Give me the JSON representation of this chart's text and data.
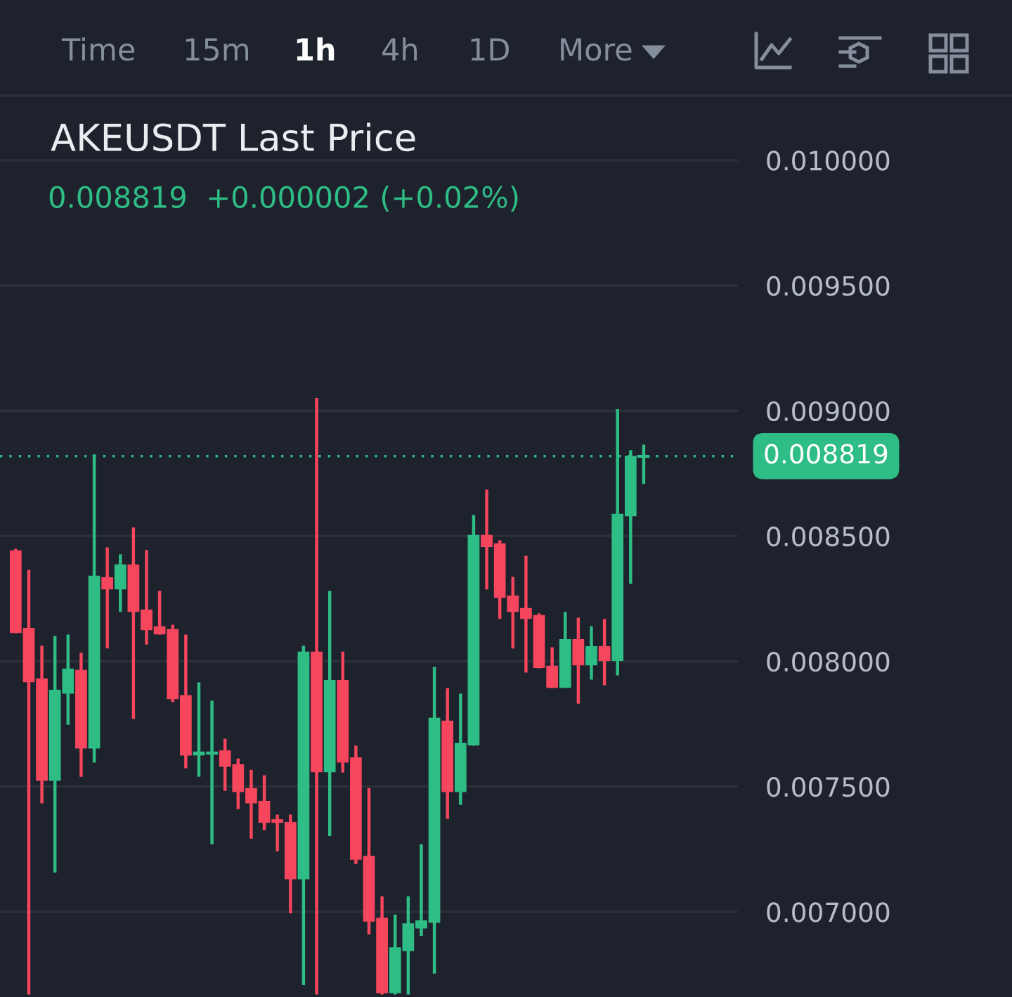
{
  "chart_data": {
    "type": "candlestick",
    "title": "AKEUSDT Last Price",
    "subtitle": "0.008819  +0.000002 (+0.02%)",
    "annotations": [
      "Time",
      "15m",
      "1h",
      "4h",
      "1D",
      "More"
    ],
    "categories": [
      null,
      null,
      null,
      null,
      null,
      null,
      null,
      null,
      null,
      null,
      null,
      null,
      null,
      null,
      null,
      null,
      null,
      null,
      null,
      null,
      null,
      null,
      null,
      null,
      null,
      null,
      null,
      null,
      null,
      null,
      null,
      null,
      null,
      null,
      null,
      null,
      null,
      null,
      null,
      null,
      null,
      null,
      null,
      null,
      null,
      null,
      null,
      null,
      null
    ],
    "ohlc": [
      [
        0.008438,
        0.008449,
        0.008112,
        0.008118
      ],
      [
        0.008129,
        0.008365,
        0.00667,
        0.007921
      ],
      [
        0.007927,
        0.008062,
        0.007433,
        0.007528
      ],
      [
        0.007528,
        0.008101,
        0.007157,
        0.007882
      ],
      [
        0.007876,
        0.008107,
        0.007747,
        0.007966
      ],
      [
        0.007961,
        0.008034,
        0.007539,
        0.007657
      ],
      [
        0.007657,
        0.008826,
        0.007596,
        0.008337
      ],
      [
        0.008331,
        0.008455,
        0.008051,
        0.008292
      ],
      [
        0.008292,
        0.008427,
        0.008197,
        0.008382
      ],
      [
        0.008382,
        0.008534,
        0.00777,
        0.008202
      ],
      [
        0.008202,
        0.008444,
        0.008067,
        0.008129
      ],
      [
        0.008135,
        0.008281,
        0.008107,
        0.008112
      ],
      [
        0.008124,
        0.008146,
        0.007837,
        0.007854
      ],
      [
        0.00786,
        0.008107,
        0.007573,
        0.007629
      ],
      [
        0.007629,
        0.007916,
        0.007539,
        0.007635
      ],
      [
        0.007632,
        0.007843,
        0.00727,
        0.007635
      ],
      [
        0.00764,
        0.007691,
        0.007483,
        0.007584
      ],
      [
        0.007584,
        0.007612,
        0.00741,
        0.007483
      ],
      [
        0.007489,
        0.007567,
        0.007292,
        0.007438
      ],
      [
        0.007438,
        0.007545,
        0.007326,
        0.00736
      ],
      [
        0.007365,
        0.007388,
        0.007242,
        0.00736
      ],
      [
        0.007354,
        0.007388,
        0.006994,
        0.007135
      ],
      [
        0.007135,
        0.008062,
        0.006708,
        0.008034
      ],
      [
        0.008034,
        0.009051,
        0.00667,
        0.007562
      ],
      [
        0.007562,
        0.008281,
        0.007303,
        0.007921
      ],
      [
        0.007921,
        0.008039,
        0.007556,
        0.007601
      ],
      [
        0.007612,
        0.007663,
        0.007191,
        0.007213
      ],
      [
        0.007219,
        0.007494,
        0.00691,
        0.006966
      ],
      [
        0.006972,
        0.007062,
        0.00667,
        0.00668
      ],
      [
        0.00668,
        0.006989,
        0.00667,
        0.006854
      ],
      [
        0.006848,
        0.007062,
        0.00667,
        0.006949
      ],
      [
        0.006938,
        0.00727,
        0.006904,
        0.006961
      ],
      [
        0.006961,
        0.007978,
        0.006753,
        0.00777
      ],
      [
        0.007758,
        0.007893,
        0.007371,
        0.007483
      ],
      [
        0.007483,
        0.007871,
        0.007427,
        0.007669
      ],
      [
        0.007669,
        0.008584,
        0.007663,
        0.0085
      ],
      [
        0.0085,
        0.008685,
        0.008287,
        0.008461
      ],
      [
        0.008466,
        0.008483,
        0.008169,
        0.008258
      ],
      [
        0.008258,
        0.008337,
        0.008051,
        0.008202
      ],
      [
        0.008208,
        0.008421,
        0.007955,
        0.008174
      ],
      [
        0.00818,
        0.008191,
        0.007972,
        0.007978
      ],
      [
        0.007978,
        0.008056,
        0.007893,
        0.007899
      ],
      [
        0.007899,
        0.008197,
        0.007893,
        0.008084
      ],
      [
        0.008084,
        0.008174,
        0.007831,
        0.007989
      ],
      [
        0.007989,
        0.00814,
        0.007927,
        0.008056
      ],
      [
        0.008056,
        0.008169,
        0.007904,
        0.008006
      ],
      [
        0.008006,
        0.009006,
        0.007944,
        0.008584
      ],
      [
        0.008584,
        0.008843,
        0.008309,
        0.008815
      ],
      [
        0.008817,
        0.008865,
        0.008708,
        0.008819
      ]
    ],
    "colors": [
      "#f6465d",
      "#f6465d",
      "#f6465d",
      "#2ebd85",
      "#2ebd85",
      "#f6465d",
      "#2ebd85",
      "#f6465d",
      "#2ebd85",
      "#f6465d",
      "#f6465d",
      "#f6465d",
      "#f6465d",
      "#f6465d",
      "#2ebd85",
      "#2ebd85",
      "#f6465d",
      "#f6465d",
      "#f6465d",
      "#f6465d",
      "#f6465d",
      "#f6465d",
      "#2ebd85",
      "#f6465d",
      "#2ebd85",
      "#f6465d",
      "#f6465d",
      "#f6465d",
      "#f6465d",
      "#2ebd85",
      "#2ebd85",
      "#2ebd85",
      "#2ebd85",
      "#f6465d",
      "#2ebd85",
      "#2ebd85",
      "#f6465d",
      "#f6465d",
      "#f6465d",
      "#f6465d",
      "#f6465d",
      "#f6465d",
      "#2ebd85",
      "#f6465d",
      "#2ebd85",
      "#f6465d",
      "#2ebd85",
      "#2ebd85",
      "#2ebd85"
    ],
    "ylim": [
      0.00666,
      0.010258
    ],
    "yticks": [
      {
        "value": 0.007,
        "label": "0.007000"
      },
      {
        "value": 0.0075,
        "label": "0.007500"
      },
      {
        "value": 0.008,
        "label": "0.008000"
      },
      {
        "value": 0.0085,
        "label": "0.008500"
      },
      {
        "value": 0.009,
        "label": "0.009000"
      },
      {
        "value": 0.0095,
        "label": "0.009500"
      },
      {
        "value": 0.01,
        "label": "0.010000"
      }
    ],
    "tick_labels": "y",
    "grid": "y",
    "ref_lines": [
      {
        "axis": "y",
        "value": 0.008819,
        "label": "0.008819",
        "color": "#2ebd85",
        "line_style": "dotted"
      }
    ]
  }
}
